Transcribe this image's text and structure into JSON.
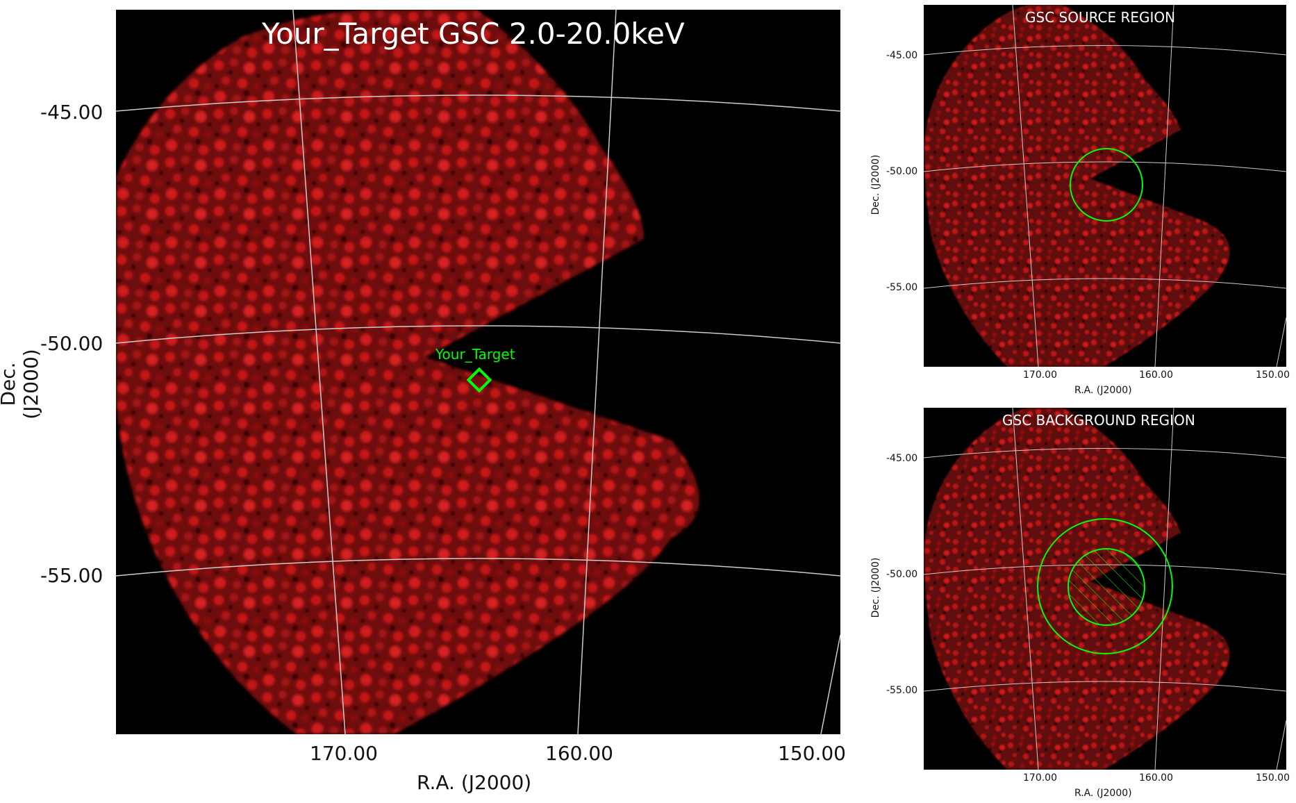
{
  "main_panel": {
    "title": "Your_Target GSC 2.0-20.0keV",
    "x_axis_label": "R.A. (J2000)",
    "y_axis_label": "Dec. (J2000)",
    "x_ticks": [
      "170.00",
      "160.00",
      "150.00"
    ],
    "y_ticks": [
      "-45.00",
      "-50.00",
      "-55.00"
    ],
    "target_label": "Your_Target"
  },
  "source_panel": {
    "title": "GSC SOURCE REGION",
    "x_axis_label": "R.A. (J2000)",
    "y_axis_label": "Dec. (J2000)",
    "x_ticks": [
      "170.00",
      "160.00",
      "150.00"
    ],
    "y_ticks": [
      "-45.00",
      "-50.00",
      "-55.00"
    ]
  },
  "background_panel": {
    "title": "GSC BACKGROUND REGION",
    "x_axis_label": "R.A. (J2000)",
    "y_axis_label": "Dec. (J2000)",
    "x_ticks": [
      "170.00",
      "160.00",
      "150.00"
    ],
    "y_ticks": [
      "-45.00",
      "-50.00",
      "-55.00"
    ]
  },
  "colors": {
    "background": "#000000",
    "emission": "#c81414",
    "region": "#00ff00",
    "grid": "#cccccc"
  }
}
